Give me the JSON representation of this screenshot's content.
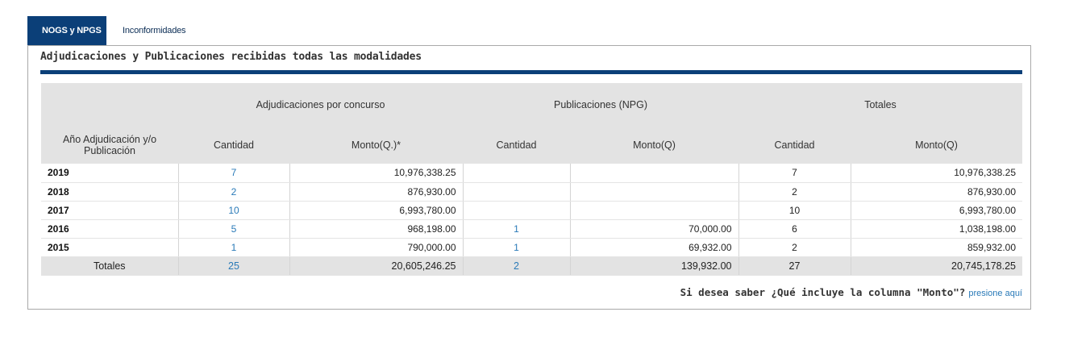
{
  "tabs": [
    {
      "label": "NOGS y NPGS",
      "active": true
    },
    {
      "label": "Inconformidades",
      "active": false
    }
  ],
  "panel": {
    "title": "Adjudicaciones y Publicaciones recibidas todas las modalidades"
  },
  "table": {
    "group_headers": {
      "adjudicaciones": "Adjudicaciones por concurso",
      "publicaciones": "Publicaciones (NPG)",
      "totales": "Totales"
    },
    "col_headers": {
      "year": "Año Adjudicación y/o Publicación",
      "adj_cantidad": "Cantidad",
      "adj_monto": "Monto(Q.)*",
      "pub_cantidad": "Cantidad",
      "pub_monto": "Monto(Q)",
      "tot_cantidad": "Cantidad",
      "tot_monto": "Monto(Q)"
    },
    "rows": [
      {
        "year": "2019",
        "adj_cantidad": "7",
        "adj_monto": "10,976,338.25",
        "pub_cantidad": "",
        "pub_monto": "",
        "tot_cantidad": "7",
        "tot_monto": "10,976,338.25"
      },
      {
        "year": "2018",
        "adj_cantidad": "2",
        "adj_monto": "876,930.00",
        "pub_cantidad": "",
        "pub_monto": "",
        "tot_cantidad": "2",
        "tot_monto": "876,930.00"
      },
      {
        "year": "2017",
        "adj_cantidad": "10",
        "adj_monto": "6,993,780.00",
        "pub_cantidad": "",
        "pub_monto": "",
        "tot_cantidad": "10",
        "tot_monto": "6,993,780.00"
      },
      {
        "year": "2016",
        "adj_cantidad": "5",
        "adj_monto": "968,198.00",
        "pub_cantidad": "1",
        "pub_monto": "70,000.00",
        "tot_cantidad": "6",
        "tot_monto": "1,038,198.00"
      },
      {
        "year": "2015",
        "adj_cantidad": "1",
        "adj_monto": "790,000.00",
        "pub_cantidad": "1",
        "pub_monto": "69,932.00",
        "tot_cantidad": "2",
        "tot_monto": "859,932.00"
      }
    ],
    "totals": {
      "label": "Totales",
      "adj_cantidad": "25",
      "adj_monto": "20,605,246.25",
      "pub_cantidad": "2",
      "pub_monto": "139,932.00",
      "tot_cantidad": "27",
      "tot_monto": "20,745,178.25"
    }
  },
  "footer": {
    "question": "Si desea saber ¿Qué incluye la columna \"Monto\"?",
    "link": "presione aquí"
  },
  "colors": {
    "brand": "#0b3f78",
    "link": "#2a7ab8",
    "header_bg": "#e3e3e3"
  }
}
